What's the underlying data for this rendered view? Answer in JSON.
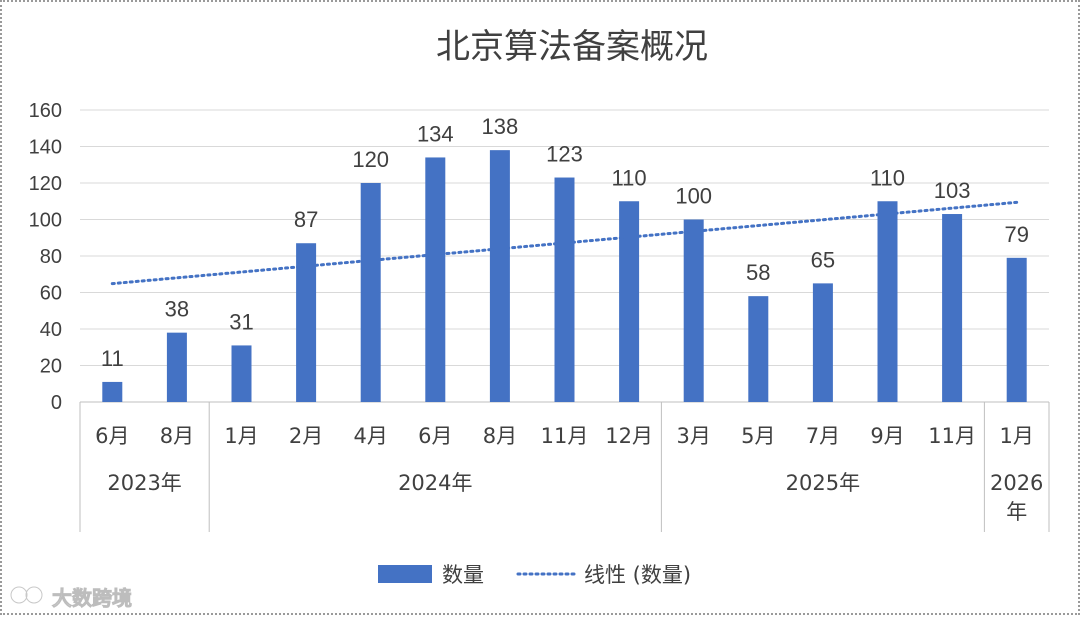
{
  "chart_data": {
    "type": "bar",
    "title": "北京算法备案概况",
    "categories": [
      "6月",
      "8月",
      "1月",
      "2月",
      "4月",
      "6月",
      "8月",
      "11月",
      "12月",
      "3月",
      "5月",
      "7月",
      "9月",
      "11月",
      "1月"
    ],
    "groups": [
      {
        "label": "2023年",
        "count": 2
      },
      {
        "label": "2024年",
        "count": 7
      },
      {
        "label": "2025年",
        "count": 5
      },
      {
        "label": "2026年",
        "count": 1
      }
    ],
    "series": [
      {
        "name": "数量",
        "values": [
          11,
          38,
          31,
          87,
          120,
          134,
          138,
          123,
          110,
          100,
          58,
          65,
          110,
          103,
          79
        ],
        "color": "#4472c4"
      }
    ],
    "trendline": {
      "name": "线性 (数量)",
      "type": "linear",
      "color": "#4472c4",
      "style": "dotted"
    },
    "data_labels": true,
    "ylim": [
      0,
      160
    ],
    "yticks": [
      0,
      20,
      40,
      60,
      80,
      100,
      120,
      140,
      160
    ],
    "grid": true,
    "legend_position": "bottom",
    "xlabel": "",
    "ylabel": ""
  },
  "watermark": {
    "text": "大数跨境"
  }
}
